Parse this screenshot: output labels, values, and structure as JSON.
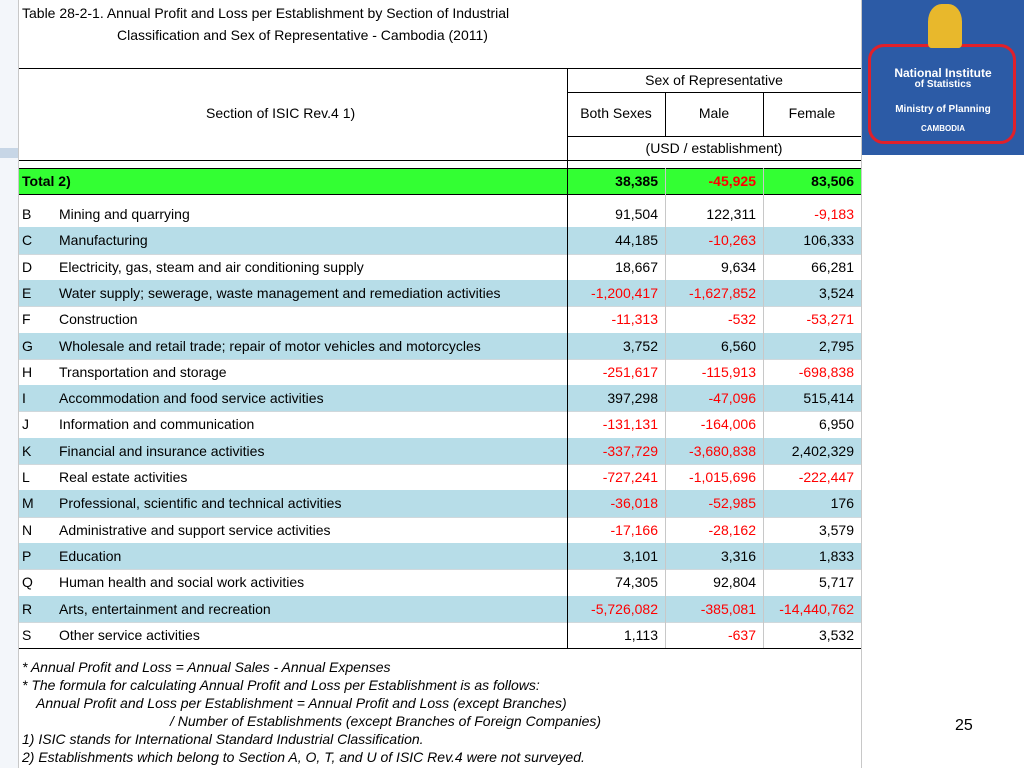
{
  "header": {
    "title_line1": "Table 28-2-1. Annual Profit and Loss per Establishment by Section of Industrial",
    "title_line2": "Classification and Sex of Representative - Cambodia (2011)"
  },
  "table": {
    "section_header": "Section of ISIC Rev.4  1)",
    "group_header": "Sex of Representative",
    "columns": [
      "Both Sexes",
      "Male",
      "Female"
    ],
    "unit": "(USD / establishment)",
    "total": {
      "label": "Total  2)",
      "values": [
        "38,385",
        "-45,925",
        "83,506"
      ]
    },
    "rows": [
      [
        "B",
        "Mining and quarrying",
        "91,504",
        "122,311",
        "-9,183"
      ],
      [
        "C",
        "Manufacturing",
        "44,185",
        "-10,263",
        "106,333"
      ],
      [
        "D",
        "Electricity, gas, steam and air conditioning supply",
        "18,667",
        "9,634",
        "66,281"
      ],
      [
        "E",
        "Water supply; sewerage, waste management and remediation activities",
        "-1,200,417",
        "-1,627,852",
        "3,524"
      ],
      [
        "F",
        "Construction",
        "-11,313",
        "-532",
        "-53,271"
      ],
      [
        "G",
        "Wholesale and retail trade; repair of motor vehicles and motorcycles",
        "3,752",
        "6,560",
        "2,795"
      ],
      [
        "H",
        "Transportation and storage",
        "-251,617",
        "-115,913",
        "-698,838"
      ],
      [
        "I",
        "Accommodation and food service activities",
        "397,298",
        "-47,096",
        "515,414"
      ],
      [
        "J",
        "Information and communication",
        "-131,131",
        "-164,006",
        "6,950"
      ],
      [
        "K",
        "Financial and insurance activities",
        "-337,729",
        "-3,680,838",
        "2,402,329"
      ],
      [
        "L",
        "Real estate activities",
        "-727,241",
        "-1,015,696",
        "-222,447"
      ],
      [
        "M",
        "Professional, scientific and technical activities",
        "-36,018",
        "-52,985",
        "176"
      ],
      [
        "N",
        "Administrative and support service activities",
        "-17,166",
        "-28,162",
        "3,579"
      ],
      [
        "P",
        "Education",
        "3,101",
        "3,316",
        "1,833"
      ],
      [
        "Q",
        "Human health and social work activities",
        "74,305",
        "92,804",
        "5,717"
      ],
      [
        "R",
        "Arts, entertainment and recreation",
        "-5,726,082",
        "-385,081",
        "-14,440,762"
      ],
      [
        "S",
        "Other service activities",
        "1,113",
        "-637",
        "3,532"
      ]
    ]
  },
  "notes": [
    "* Annual Profit and Loss = Annual Sales - Annual Expenses",
    "* The formula for calculating Annual Profit and Loss per Establishment is as follows:",
    "Annual Profit and Loss per Establishment = Annual Profit and Loss (except Branches)",
    "/ Number of Establishments (except Branches of Foreign Companies)",
    "1) ISIC stands for International Standard Industrial Classification.",
    "2) Establishments which belong to Section A, O, T, and U of ISIC Rev.4 were not surveyed."
  ],
  "logo": {
    "name_line1": "National Institute",
    "name_line2": "of Statistics",
    "ministry": "Ministry of Planning",
    "country": "CAMBODIA"
  },
  "page_number": "25"
}
